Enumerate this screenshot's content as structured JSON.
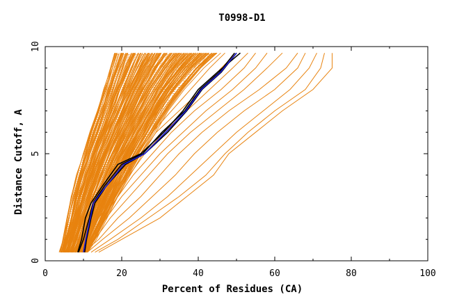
{
  "chart_data": {
    "type": "line",
    "title": "T0998-D1",
    "xlabel": "Percent of Residues (CA)",
    "ylabel": "Distance Cutoff, A",
    "xlim": [
      0,
      100
    ],
    "ylim": [
      0,
      10
    ],
    "x_ticks": [
      "0",
      "20",
      "40",
      "60",
      "80",
      "100"
    ],
    "y_ticks": [
      "0",
      "5",
      "10"
    ],
    "grid": false,
    "colors": {
      "bundle": "#e8830f",
      "highlight_black": "#000000",
      "highlight_blue": "#1a1ad6",
      "axis": "#000000"
    },
    "bundle_envelope": {
      "y": [
        0.4,
        1,
        2,
        3,
        4,
        5,
        6,
        7,
        8,
        9,
        9.7
      ],
      "x_left": [
        4,
        4.8,
        6,
        7.2,
        8.6,
        10.2,
        12,
        13.8,
        15.4,
        17,
        18
      ],
      "x_right": [
        11,
        13,
        15.8,
        18.5,
        21.5,
        24.5,
        28,
        31.5,
        35.5,
        40.5,
        45
      ]
    },
    "series": [
      {
        "color": "#e8830f",
        "y": [
          0.4,
          1,
          2,
          3,
          4,
          5,
          6,
          7,
          8,
          9,
          9.7
        ],
        "x": [
          14,
          20,
          30,
          37,
          44,
          48,
          55,
          62,
          70,
          75,
          75
        ]
      },
      {
        "color": "#e8830f",
        "y": [
          0.4,
          1,
          2,
          3,
          4,
          5,
          6,
          7,
          8,
          9,
          9.7
        ],
        "x": [
          13,
          19,
          27,
          35,
          42,
          47,
          53,
          60,
          68,
          72,
          73
        ]
      },
      {
        "color": "#e8830f",
        "y": [
          0.4,
          1,
          2,
          3,
          4,
          5,
          6,
          7,
          8,
          9,
          9.7
        ],
        "x": [
          12,
          17,
          25,
          32,
          38,
          44,
          50,
          57,
          64,
          69,
          71
        ]
      },
      {
        "color": "#e8830f",
        "y": [
          0.4,
          1,
          2,
          3,
          4,
          5,
          6,
          7,
          8,
          9,
          9.7
        ],
        "x": [
          11,
          15,
          22,
          28,
          34,
          39,
          45,
          52,
          60,
          66,
          68
        ]
      },
      {
        "color": "#e8830f",
        "y": [
          0.4,
          1,
          2,
          3,
          4,
          5,
          6,
          7,
          8,
          9,
          9.7
        ],
        "x": [
          10,
          14,
          19,
          25,
          30,
          35,
          41,
          48,
          56,
          63,
          66
        ]
      },
      {
        "color": "#e8830f",
        "y": [
          0.4,
          1,
          2,
          3,
          4,
          5,
          6,
          7,
          8,
          9,
          9.7
        ],
        "x": [
          10,
          13,
          17,
          22,
          27,
          32,
          38,
          45,
          52,
          58,
          62
        ]
      },
      {
        "color": "#e8830f",
        "y": [
          0.4,
          1,
          2,
          3,
          4,
          5,
          6,
          7,
          8,
          9,
          9.7
        ],
        "x": [
          9,
          12,
          16,
          20,
          25,
          30,
          36,
          42,
          49,
          55,
          58
        ]
      },
      {
        "color": "#e8830f",
        "y": [
          0.4,
          1,
          2,
          3,
          4,
          5,
          6,
          7,
          8,
          9,
          9.7
        ],
        "x": [
          9,
          12,
          15,
          19,
          23,
          28,
          33,
          39,
          46,
          52,
          55
        ]
      },
      {
        "color": "#e8830f",
        "y": [
          0.4,
          1,
          2,
          3,
          4,
          5,
          6,
          7,
          8,
          9,
          9.7
        ],
        "x": [
          8,
          11,
          14,
          18,
          22,
          26,
          31,
          37,
          43,
          49,
          53
        ]
      },
      {
        "color": "#e8830f",
        "y": [
          0.4,
          1,
          2,
          3,
          4,
          5,
          6,
          7,
          8,
          9,
          9.7
        ],
        "x": [
          8,
          11,
          14,
          17,
          21,
          25,
          29,
          35,
          41,
          46,
          50
        ]
      },
      {
        "color": "#e8830f",
        "y": [
          0.4,
          1,
          2,
          3,
          4,
          5,
          6,
          7,
          8,
          9,
          9.7
        ],
        "x": [
          7,
          10,
          13,
          16,
          20,
          24,
          28,
          33,
          38,
          43,
          47
        ]
      },
      {
        "color": "#000000",
        "y": [
          0.4,
          1,
          2,
          2.7,
          3.5,
          4.5,
          5,
          6,
          7,
          8,
          8.8,
          9.7
        ],
        "x": [
          8.5,
          9.5,
          10.5,
          12,
          15,
          19,
          25,
          31,
          36,
          40,
          45,
          51
        ]
      },
      {
        "color": "#000000",
        "y": [
          0.4,
          1,
          2,
          2.7,
          3.5,
          4.5,
          5,
          6,
          7,
          8,
          8.8,
          9.7
        ],
        "x": [
          10.3,
          10.8,
          12,
          13,
          16,
          21,
          26,
          32,
          37,
          41,
          46,
          50
        ]
      },
      {
        "color": "#000000",
        "y": [
          0.4,
          1,
          2,
          2.7,
          3.5,
          4.5,
          5,
          6,
          7,
          8,
          8.8,
          9.7
        ],
        "x": [
          8.7,
          10,
          11.5,
          12.5,
          15.5,
          20,
          25.5,
          30.5,
          36.5,
          40.5,
          45.5,
          49.5
        ]
      },
      {
        "color": "#1a1ad6",
        "y": [
          0.4,
          1,
          2,
          2.7,
          3.5,
          4.5,
          5,
          6,
          7,
          8,
          8.8,
          9.7
        ],
        "x": [
          10,
          10.6,
          11.8,
          12.6,
          16,
          20.5,
          26,
          31.5,
          36.8,
          40.8,
          45.8,
          50
        ]
      }
    ]
  }
}
